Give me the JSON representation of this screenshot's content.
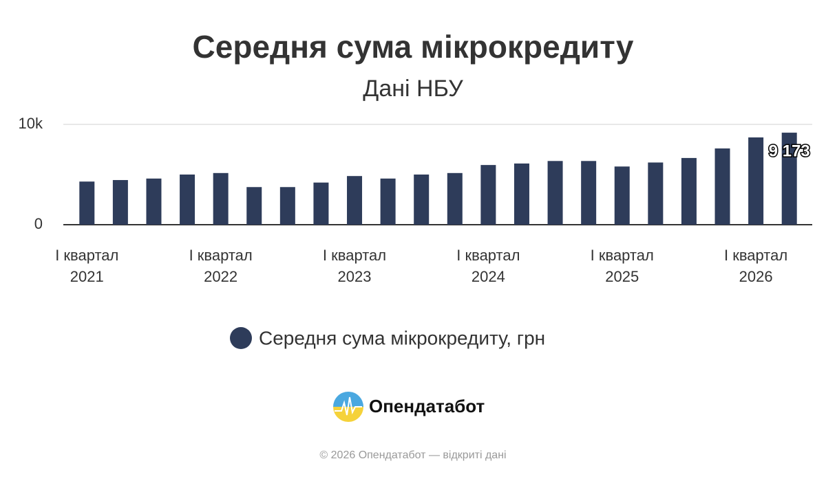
{
  "chart_data": {
    "type": "bar",
    "title": "Середня сума мікрокредиту",
    "subtitle": "Дані НБУ",
    "categories": [
      "І квартал\n2021",
      null,
      null,
      null,
      "І квартал\n2022",
      null,
      null,
      null,
      "І квартал\n2023",
      null,
      null,
      null,
      "І квартал\n2024",
      null,
      null,
      null,
      "І квартал\n2025",
      null,
      null,
      null,
      "І квартал\n2026",
      null
    ],
    "series": [
      {
        "name": "Середня сума мікрокредиту, грн",
        "color": "#2e3c5a",
        "values": [
          4300,
          4450,
          4600,
          5000,
          5150,
          3750,
          3750,
          4200,
          4850,
          4600,
          5000,
          5150,
          5950,
          6100,
          6350,
          6350,
          5800,
          6200,
          6650,
          7600,
          8700,
          9173
        ],
        "value_labels": [
          null,
          null,
          null,
          null,
          null,
          null,
          null,
          null,
          null,
          null,
          null,
          null,
          null,
          null,
          null,
          null,
          null,
          null,
          null,
          null,
          null,
          "9 173"
        ]
      }
    ],
    "ylim": [
      0,
      10000
    ],
    "yticks": [
      0,
      {
        "value": 10000,
        "label": "10k"
      }
    ],
    "grid": true
  },
  "brand": "Опендатабот",
  "footer": "© 2026 Опендатабот — відкриті дані"
}
